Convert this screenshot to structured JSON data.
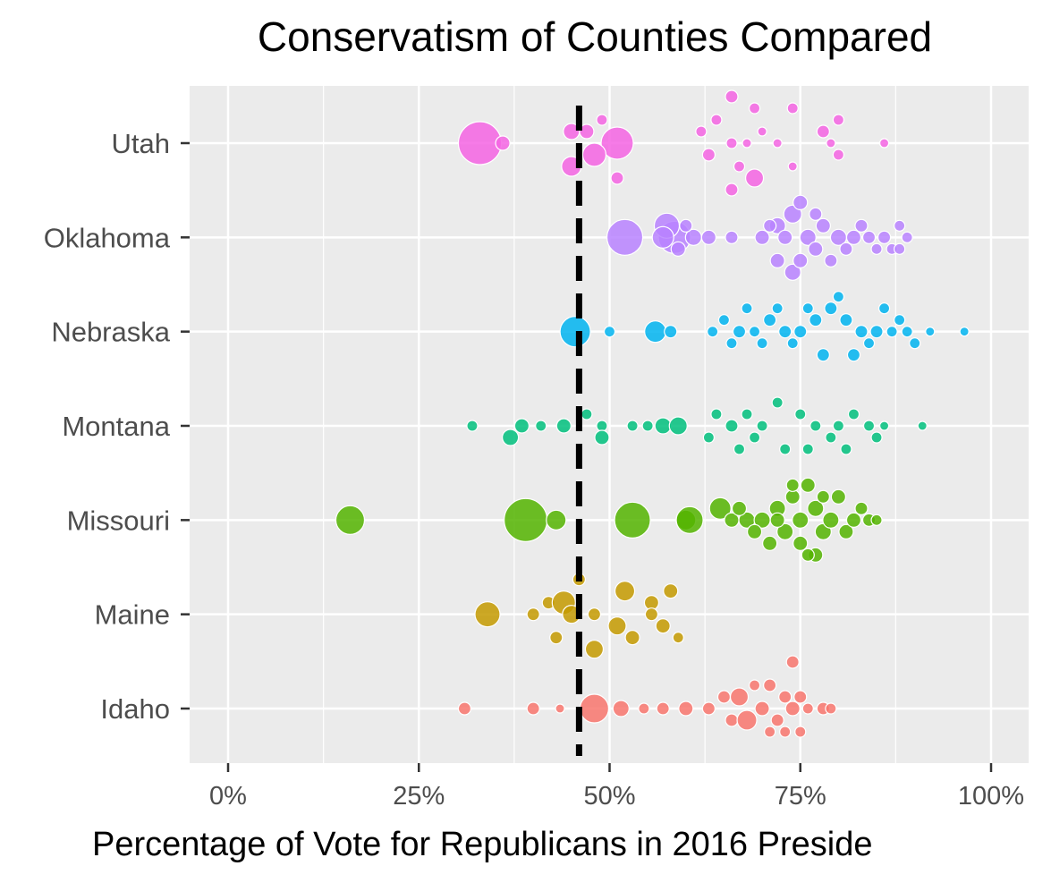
{
  "chart_data": {
    "type": "scatter",
    "title": "Conservatism of Counties Compared",
    "xlabel": "Percentage of Vote for Republicans in 2016 Preside",
    "ylabel": "",
    "xlim": [
      -0.1,
      1.1
    ],
    "x_ticks": [
      {
        "value": 0.0,
        "label": "0%"
      },
      {
        "value": 0.25,
        "label": "25%"
      },
      {
        "value": 0.5,
        "label": "50%"
      },
      {
        "value": 0.75,
        "label": "75%"
      },
      {
        "value": 1.0,
        "label": "100%"
      }
    ],
    "categories": [
      "Utah",
      "Oklahoma",
      "Nebraska",
      "Montana",
      "Missouri",
      "Maine",
      "Idaho"
    ],
    "reference_line": {
      "x": 0.46,
      "style": "dashed",
      "color": "#000000"
    },
    "grid": true,
    "legend": "none",
    "background": "#ebebeb",
    "colors": {
      "Utah": "#f564e3",
      "Oklahoma": "#b983ff",
      "Nebraska": "#00b4f0",
      "Montana": "#00bf7d",
      "Missouri": "#53b400",
      "Maine": "#c49a00",
      "Idaho": "#f8766d"
    },
    "series": [
      {
        "category": "Utah",
        "points": [
          [
            0.33,
            0.0,
            24
          ],
          [
            0.36,
            0.0,
            8
          ],
          [
            0.45,
            0.01,
            9
          ],
          [
            0.47,
            0.01,
            8
          ],
          [
            0.49,
            0.02,
            6
          ],
          [
            0.51,
            0.0,
            18
          ],
          [
            0.48,
            -0.01,
            13
          ],
          [
            0.45,
            -0.02,
            11
          ],
          [
            0.51,
            -0.03,
            7
          ],
          [
            0.66,
            0.04,
            7
          ],
          [
            0.64,
            0.02,
            6
          ],
          [
            0.69,
            0.03,
            6
          ],
          [
            0.7,
            0.01,
            5
          ],
          [
            0.74,
            0.03,
            6
          ],
          [
            0.62,
            0.01,
            6
          ],
          [
            0.66,
            0.0,
            6
          ],
          [
            0.68,
            0.0,
            5
          ],
          [
            0.72,
            0.0,
            5
          ],
          [
            0.78,
            0.01,
            7
          ],
          [
            0.8,
            0.02,
            6
          ],
          [
            0.86,
            0.0,
            5
          ],
          [
            0.63,
            -0.01,
            7
          ],
          [
            0.69,
            -0.03,
            10
          ],
          [
            0.67,
            -0.02,
            6
          ],
          [
            0.74,
            -0.02,
            5
          ],
          [
            0.8,
            -0.01,
            6
          ],
          [
            0.66,
            -0.04,
            7
          ],
          [
            0.79,
            0.0,
            5
          ]
        ]
      },
      {
        "category": "Oklahoma",
        "points": [
          [
            0.52,
            0.0,
            20
          ],
          [
            0.585,
            0.0,
            18
          ],
          [
            0.575,
            0.01,
            14
          ],
          [
            0.57,
            0.0,
            12
          ],
          [
            0.61,
            0.0,
            9
          ],
          [
            0.63,
            0.0,
            8
          ],
          [
            0.66,
            0.0,
            7
          ],
          [
            0.59,
            -0.01,
            8
          ],
          [
            0.6,
            0.01,
            7
          ],
          [
            0.7,
            0.0,
            8
          ],
          [
            0.72,
            0.01,
            9
          ],
          [
            0.74,
            0.02,
            10
          ],
          [
            0.75,
            0.03,
            8
          ],
          [
            0.76,
            0.0,
            9
          ],
          [
            0.78,
            0.01,
            8
          ],
          [
            0.8,
            0.0,
            9
          ],
          [
            0.82,
            0.0,
            8
          ],
          [
            0.84,
            0.0,
            7
          ],
          [
            0.86,
            0.0,
            7
          ],
          [
            0.88,
            0.01,
            6
          ],
          [
            0.89,
            0.0,
            6
          ],
          [
            0.72,
            -0.02,
            8
          ],
          [
            0.74,
            -0.03,
            9
          ],
          [
            0.75,
            -0.02,
            8
          ],
          [
            0.77,
            -0.01,
            8
          ],
          [
            0.79,
            -0.02,
            7
          ],
          [
            0.81,
            -0.01,
            7
          ],
          [
            0.83,
            0.01,
            7
          ],
          [
            0.85,
            -0.01,
            6
          ],
          [
            0.87,
            -0.01,
            6
          ],
          [
            0.88,
            -0.01,
            6
          ],
          [
            0.71,
            0.01,
            7
          ],
          [
            0.73,
            0.0,
            8
          ],
          [
            0.77,
            0.02,
            7
          ]
        ]
      },
      {
        "category": "Nebraska",
        "points": [
          [
            0.455,
            0.0,
            17
          ],
          [
            0.5,
            0.0,
            6
          ],
          [
            0.56,
            0.0,
            12
          ],
          [
            0.58,
            0.0,
            7
          ],
          [
            0.635,
            0.0,
            6
          ],
          [
            0.65,
            0.01,
            6
          ],
          [
            0.67,
            0.0,
            7
          ],
          [
            0.69,
            0.0,
            6
          ],
          [
            0.71,
            0.01,
            7
          ],
          [
            0.73,
            0.0,
            7
          ],
          [
            0.75,
            0.0,
            7
          ],
          [
            0.77,
            0.01,
            7
          ],
          [
            0.79,
            0.02,
            7
          ],
          [
            0.81,
            0.01,
            7
          ],
          [
            0.83,
            0.0,
            7
          ],
          [
            0.85,
            0.0,
            7
          ],
          [
            0.87,
            0.0,
            6
          ],
          [
            0.89,
            0.0,
            6
          ],
          [
            0.92,
            0.0,
            5
          ],
          [
            0.965,
            0.0,
            5
          ],
          [
            0.66,
            -0.01,
            6
          ],
          [
            0.7,
            -0.01,
            6
          ],
          [
            0.74,
            -0.01,
            6
          ],
          [
            0.78,
            -0.02,
            7
          ],
          [
            0.82,
            -0.02,
            7
          ],
          [
            0.84,
            -0.01,
            6
          ],
          [
            0.86,
            0.02,
            6
          ],
          [
            0.8,
            0.03,
            6
          ],
          [
            0.76,
            0.02,
            6
          ],
          [
            0.72,
            0.02,
            6
          ],
          [
            0.68,
            0.02,
            6
          ],
          [
            0.88,
            0.01,
            6
          ],
          [
            0.9,
            -0.01,
            6
          ]
        ]
      },
      {
        "category": "Montana",
        "points": [
          [
            0.32,
            0.0,
            6
          ],
          [
            0.37,
            -0.01,
            9
          ],
          [
            0.385,
            0.0,
            8
          ],
          [
            0.41,
            0.0,
            6
          ],
          [
            0.44,
            0.0,
            8
          ],
          [
            0.47,
            0.01,
            6
          ],
          [
            0.49,
            0.0,
            6
          ],
          [
            0.49,
            -0.01,
            8
          ],
          [
            0.53,
            0.0,
            6
          ],
          [
            0.57,
            0.0,
            9
          ],
          [
            0.59,
            0.0,
            10
          ],
          [
            0.55,
            0.0,
            6
          ],
          [
            0.64,
            0.01,
            6
          ],
          [
            0.66,
            0.0,
            7
          ],
          [
            0.68,
            0.01,
            6
          ],
          [
            0.7,
            0.0,
            6
          ],
          [
            0.72,
            0.02,
            6
          ],
          [
            0.75,
            0.01,
            6
          ],
          [
            0.77,
            0.0,
            6
          ],
          [
            0.8,
            0.0,
            6
          ],
          [
            0.82,
            0.01,
            6
          ],
          [
            0.84,
            0.0,
            6
          ],
          [
            0.86,
            0.0,
            5
          ],
          [
            0.91,
            0.0,
            5
          ],
          [
            0.63,
            -0.01,
            6
          ],
          [
            0.67,
            -0.02,
            6
          ],
          [
            0.69,
            -0.01,
            6
          ],
          [
            0.73,
            -0.02,
            6
          ],
          [
            0.76,
            -0.02,
            6
          ],
          [
            0.79,
            -0.01,
            6
          ],
          [
            0.81,
            -0.02,
            6
          ],
          [
            0.85,
            -0.01,
            6
          ]
        ]
      },
      {
        "category": "Missouri",
        "points": [
          [
            0.16,
            0.0,
            16
          ],
          [
            0.39,
            0.0,
            24
          ],
          [
            0.43,
            0.0,
            11
          ],
          [
            0.53,
            0.0,
            20
          ],
          [
            0.6,
            0.0,
            11
          ],
          [
            0.605,
            0.0,
            15
          ],
          [
            0.645,
            0.01,
            12
          ],
          [
            0.66,
            0.0,
            8
          ],
          [
            0.68,
            0.0,
            9
          ],
          [
            0.7,
            0.0,
            9
          ],
          [
            0.72,
            0.01,
            9
          ],
          [
            0.73,
            -0.01,
            9
          ],
          [
            0.74,
            0.02,
            8
          ],
          [
            0.75,
            0.0,
            9
          ],
          [
            0.76,
            0.03,
            8
          ],
          [
            0.77,
            0.01,
            9
          ],
          [
            0.78,
            -0.01,
            9
          ],
          [
            0.79,
            0.0,
            9
          ],
          [
            0.8,
            0.02,
            8
          ],
          [
            0.81,
            -0.01,
            8
          ],
          [
            0.82,
            0.0,
            8
          ],
          [
            0.83,
            0.01,
            7
          ],
          [
            0.84,
            0.0,
            7
          ],
          [
            0.85,
            0.0,
            6
          ],
          [
            0.71,
            -0.02,
            8
          ],
          [
            0.75,
            -0.02,
            8
          ],
          [
            0.77,
            -0.03,
            8
          ],
          [
            0.74,
            0.03,
            7
          ],
          [
            0.76,
            -0.03,
            7
          ],
          [
            0.78,
            0.02,
            7
          ],
          [
            0.72,
            0.0,
            8
          ],
          [
            0.69,
            -0.01,
            8
          ],
          [
            0.67,
            0.01,
            8
          ]
        ]
      },
      {
        "category": "Maine",
        "points": [
          [
            0.34,
            0.0,
            14
          ],
          [
            0.4,
            0.0,
            7
          ],
          [
            0.42,
            0.01,
            7
          ],
          [
            0.44,
            0.01,
            13
          ],
          [
            0.46,
            0.03,
            7
          ],
          [
            0.43,
            -0.02,
            7
          ],
          [
            0.45,
            0.0,
            10
          ],
          [
            0.48,
            0.0,
            7
          ],
          [
            0.48,
            -0.03,
            10
          ],
          [
            0.52,
            0.02,
            11
          ],
          [
            0.51,
            -0.01,
            10
          ],
          [
            0.53,
            -0.02,
            8
          ],
          [
            0.555,
            0.01,
            8
          ],
          [
            0.58,
            0.02,
            8
          ],
          [
            0.555,
            0.0,
            7
          ],
          [
            0.57,
            -0.01,
            8
          ],
          [
            0.59,
            -0.02,
            6
          ]
        ]
      },
      {
        "category": "Idaho",
        "points": [
          [
            0.31,
            0.0,
            7
          ],
          [
            0.4,
            0.0,
            7
          ],
          [
            0.435,
            0.0,
            5
          ],
          [
            0.48,
            0.0,
            16
          ],
          [
            0.515,
            0.0,
            9
          ],
          [
            0.545,
            0.0,
            6
          ],
          [
            0.57,
            0.0,
            7
          ],
          [
            0.6,
            0.0,
            8
          ],
          [
            0.63,
            0.0,
            7
          ],
          [
            0.65,
            0.01,
            7
          ],
          [
            0.66,
            -0.01,
            7
          ],
          [
            0.67,
            0.01,
            10
          ],
          [
            0.68,
            -0.01,
            11
          ],
          [
            0.7,
            0.0,
            8
          ],
          [
            0.71,
            0.02,
            7
          ],
          [
            0.72,
            -0.01,
            7
          ],
          [
            0.73,
            0.01,
            7
          ],
          [
            0.74,
            0.0,
            8
          ],
          [
            0.75,
            0.01,
            7
          ],
          [
            0.76,
            0.0,
            6
          ],
          [
            0.78,
            0.0,
            7
          ],
          [
            0.79,
            0.0,
            6
          ],
          [
            0.69,
            0.02,
            6
          ],
          [
            0.73,
            -0.02,
            6
          ],
          [
            0.75,
            -0.02,
            6
          ],
          [
            0.71,
            -0.02,
            6
          ],
          [
            0.74,
            0.04,
            7
          ]
        ]
      }
    ]
  }
}
